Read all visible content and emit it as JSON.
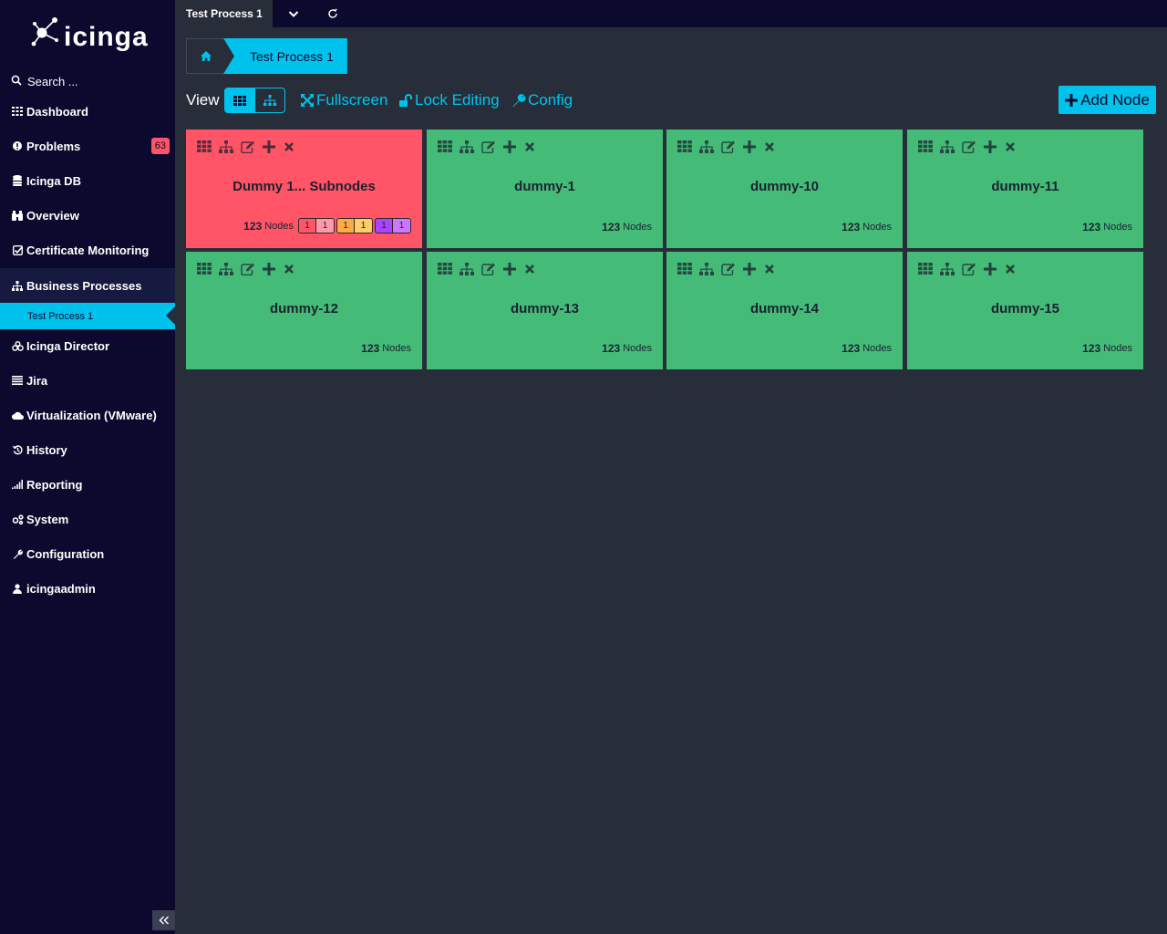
{
  "app": {
    "logo_text": "icinga"
  },
  "search": {
    "placeholder": "Search ..."
  },
  "sidebar": {
    "items": [
      {
        "label": "Dashboard"
      },
      {
        "label": "Problems",
        "badge": "63"
      },
      {
        "label": "Icinga DB"
      },
      {
        "label": "Overview"
      },
      {
        "label": "Certificate Monitoring"
      },
      {
        "label": "Business Processes"
      },
      {
        "label": "Icinga Director"
      },
      {
        "label": "Jira"
      },
      {
        "label": "Virtualization (VMware)"
      },
      {
        "label": "History"
      },
      {
        "label": "Reporting"
      },
      {
        "label": "System"
      },
      {
        "label": "Configuration"
      },
      {
        "label": "icingaadmin"
      }
    ],
    "sub_item": {
      "label": "Test Process 1"
    }
  },
  "tabbar": {
    "active_tab": "Test Process 1"
  },
  "breadcrumb": {
    "current": "Test Process 1"
  },
  "toolbar": {
    "view_label": "View",
    "fullscreen": "Fullscreen",
    "lock_editing": "Lock Editing",
    "config": "Config",
    "add_node": "Add Node"
  },
  "tiles": [
    {
      "name": "Dummy 1... Subnodes",
      "count": "123",
      "count_label": "Nodes",
      "state": "critical",
      "states": [
        "1",
        "1",
        "1",
        "1",
        "1",
        "1"
      ]
    },
    {
      "name": "dummy-1",
      "count": "123",
      "count_label": "Nodes",
      "state": "ok"
    },
    {
      "name": "dummy-10",
      "count": "123",
      "count_label": "Nodes",
      "state": "ok"
    },
    {
      "name": "dummy-11",
      "count": "123",
      "count_label": "Nodes",
      "state": "ok"
    },
    {
      "name": "dummy-12",
      "count": "123",
      "count_label": "Nodes",
      "state": "ok"
    },
    {
      "name": "dummy-13",
      "count": "123",
      "count_label": "Nodes",
      "state": "ok"
    },
    {
      "name": "dummy-14",
      "count": "123",
      "count_label": "Nodes",
      "state": "ok"
    },
    {
      "name": "dummy-15",
      "count": "123",
      "count_label": "Nodes",
      "state": "ok"
    }
  ],
  "colors": {
    "accent": "#00c3ed",
    "ok": "#44bb77",
    "critical": "#ff5566",
    "sidebar_bg": "#0b0a2e",
    "content_bg": "#282e39"
  }
}
